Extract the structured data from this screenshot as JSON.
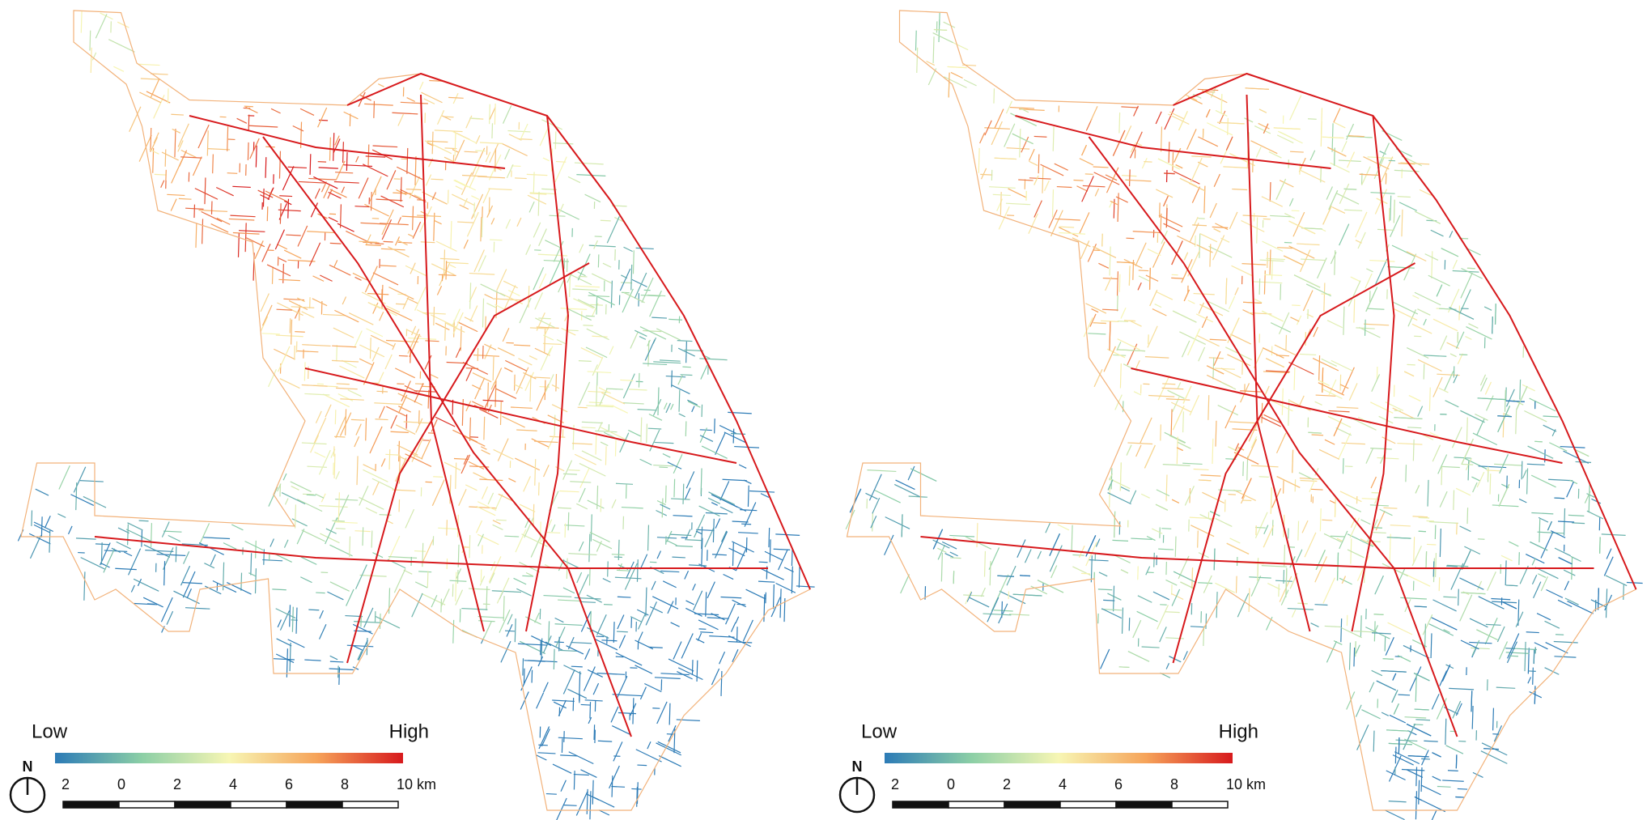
{
  "panels": [
    {
      "legend": {
        "low": "Low",
        "high": "High"
      },
      "north": "N",
      "scale_labels": [
        "2",
        "0",
        "2",
        "4",
        "6",
        "8",
        "10 km"
      ]
    },
    {
      "legend": {
        "low": "Low",
        "high": "High"
      },
      "north": "N",
      "scale_labels": [
        "2",
        "0",
        "2",
        "4",
        "6",
        "8",
        "10 km"
      ]
    }
  ]
}
